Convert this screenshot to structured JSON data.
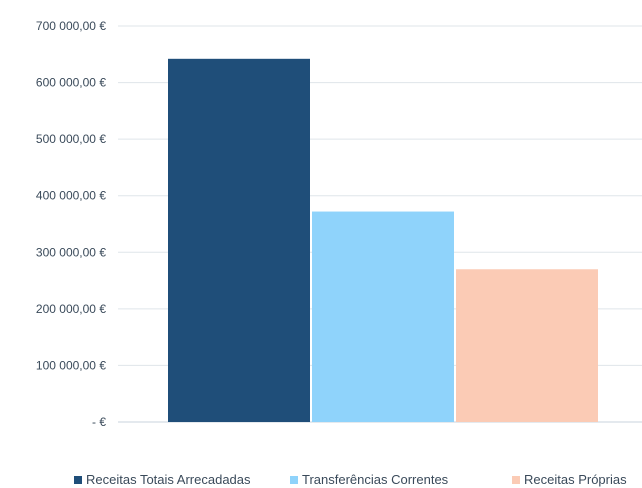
{
  "chart_data": {
    "type": "bar",
    "title": "",
    "xlabel": "",
    "ylabel": "",
    "ylim": [
      0,
      700000
    ],
    "yticks": [
      0,
      100000,
      200000,
      300000,
      400000,
      500000,
      600000,
      700000
    ],
    "ytick_labels": [
      "-   €",
      "100 000,00 €",
      "200 000,00 €",
      "300 000,00 €",
      "400 000,00 €",
      "500 000,00 €",
      "600 000,00 €",
      "700 000,00 €"
    ],
    "grid": true,
    "legend_position": "bottom",
    "series": [
      {
        "name": "Receitas Totais Arrecadadas",
        "values": [
          642000
        ],
        "color": "#1f4e79"
      },
      {
        "name": "Transferências Correntes",
        "values": [
          372000
        ],
        "color": "#8fd3fb"
      },
      {
        "name": "Receitas Próprias",
        "values": [
          270000
        ],
        "color": "#fbcbb5"
      }
    ]
  }
}
